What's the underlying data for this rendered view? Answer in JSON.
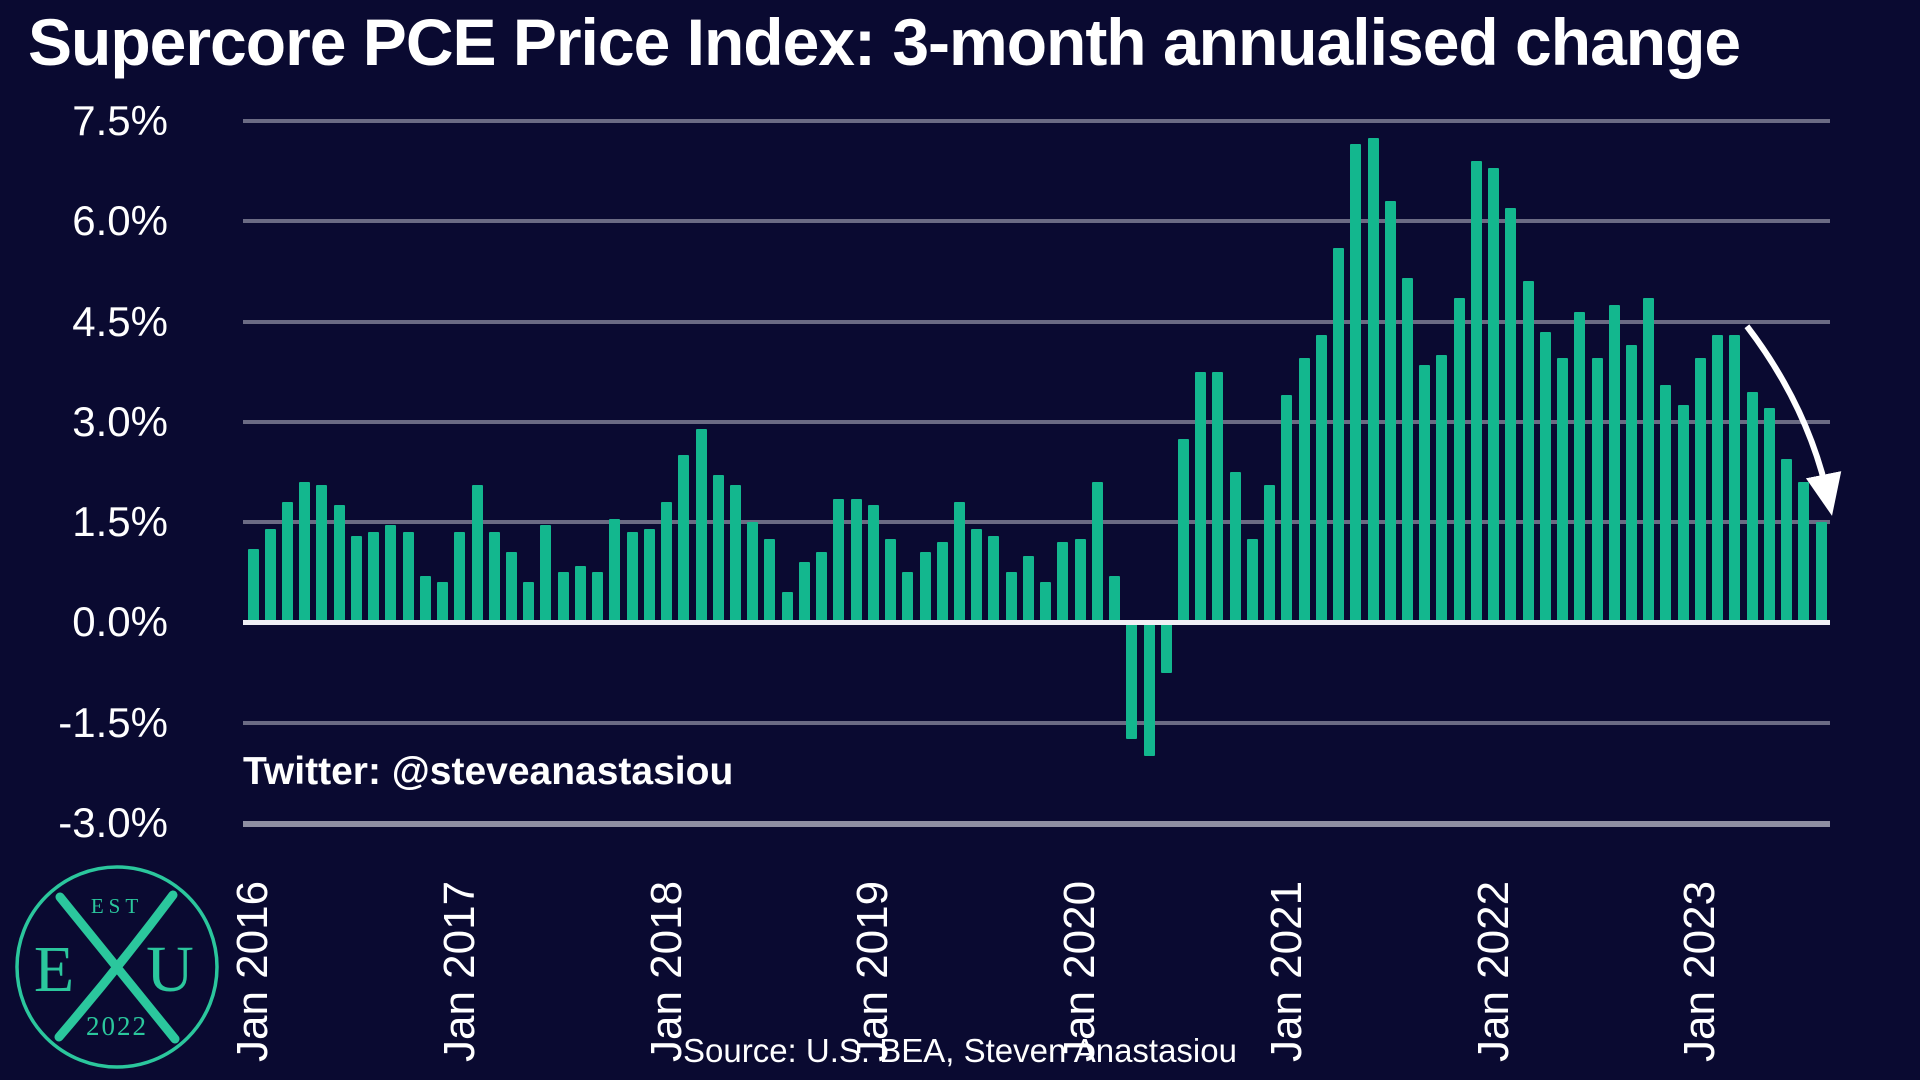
{
  "title": "Supercore PCE Price Index: 3-month annualised change",
  "annotations": {
    "twitter": "Twitter: @steveanastasiou",
    "source": "Source: U.S. BEA, Steven Anastasiou"
  },
  "logo": {
    "est": "EST",
    "year": "2022",
    "left_letter": "E",
    "right_letter": "U"
  },
  "colors": {
    "background": "#0a0a31",
    "bar": "#13b78e",
    "gridline": "#6b6b84",
    "axis_line": "#8f8fa3",
    "zero_line": "#f0f0f5",
    "text": "#ffffff",
    "logo": "#2bc79d",
    "arrow": "#ffffff"
  },
  "chart_data": {
    "type": "bar",
    "title": "Supercore PCE Price Index: 3-month annualised change",
    "unit": "%",
    "x_start": "Jan 2016",
    "x_end": "Aug 2023",
    "x_frequency": "monthly",
    "x_tick_labels": [
      "Jan 2016",
      "Jan 2017",
      "Jan 2018",
      "Jan 2019",
      "Jan 2020",
      "Jan 2021",
      "Jan 2022",
      "Jan 2023"
    ],
    "y_ticks": [
      7.5,
      6.0,
      4.5,
      3.0,
      1.5,
      0.0,
      -1.5,
      -3.0
    ],
    "y_tick_labels": [
      "7.5%",
      "6.0%",
      "4.5%",
      "3.0%",
      "1.5%",
      "0.0%",
      "-1.5%",
      "-3.0%"
    ],
    "ylim": [
      -3.0,
      7.5
    ],
    "grid": true,
    "legend": false,
    "series_by_year": [
      {
        "year": 2016,
        "monthly_values": [
          1.1,
          1.4,
          1.8,
          2.1,
          2.05,
          1.75,
          1.3,
          1.35,
          1.45,
          1.35,
          0.7,
          0.6
        ]
      },
      {
        "year": 2017,
        "monthly_values": [
          1.35,
          2.05,
          1.35,
          1.05,
          0.6,
          1.45,
          0.75,
          0.85,
          0.75,
          1.55,
          1.35,
          1.4
        ]
      },
      {
        "year": 2018,
        "monthly_values": [
          1.8,
          2.5,
          2.9,
          2.2,
          2.05,
          1.5,
          1.25,
          0.45,
          0.9,
          1.05,
          1.85,
          1.85
        ]
      },
      {
        "year": 2019,
        "monthly_values": [
          1.75,
          1.25,
          0.75,
          1.05,
          1.2,
          1.8,
          1.4,
          1.3,
          0.75,
          1.0,
          0.6,
          1.2
        ]
      },
      {
        "year": 2020,
        "monthly_values": [
          1.25,
          2.1,
          0.7,
          -1.75,
          -2.0,
          -0.75,
          2.75,
          3.75,
          3.75,
          2.25,
          1.25,
          2.05
        ]
      },
      {
        "year": 2021,
        "monthly_values": [
          3.4,
          3.95,
          4.3,
          5.6,
          7.15,
          7.25,
          6.3,
          5.15,
          3.85,
          4.0,
          4.85,
          6.9
        ]
      },
      {
        "year": 2022,
        "monthly_values": [
          6.8,
          6.2,
          5.1,
          4.35,
          3.95,
          4.65,
          3.95,
          4.75,
          4.15,
          4.85,
          3.55,
          3.25
        ]
      },
      {
        "year": 2023,
        "monthly_values": [
          3.95,
          4.3,
          4.3,
          3.45,
          3.2,
          2.45,
          2.1,
          1.5
        ]
      }
    ],
    "arrow": {
      "from_month_index": 86.7,
      "from_value": 4.43,
      "to_month_index": 91.5,
      "to_value": 1.77
    }
  }
}
